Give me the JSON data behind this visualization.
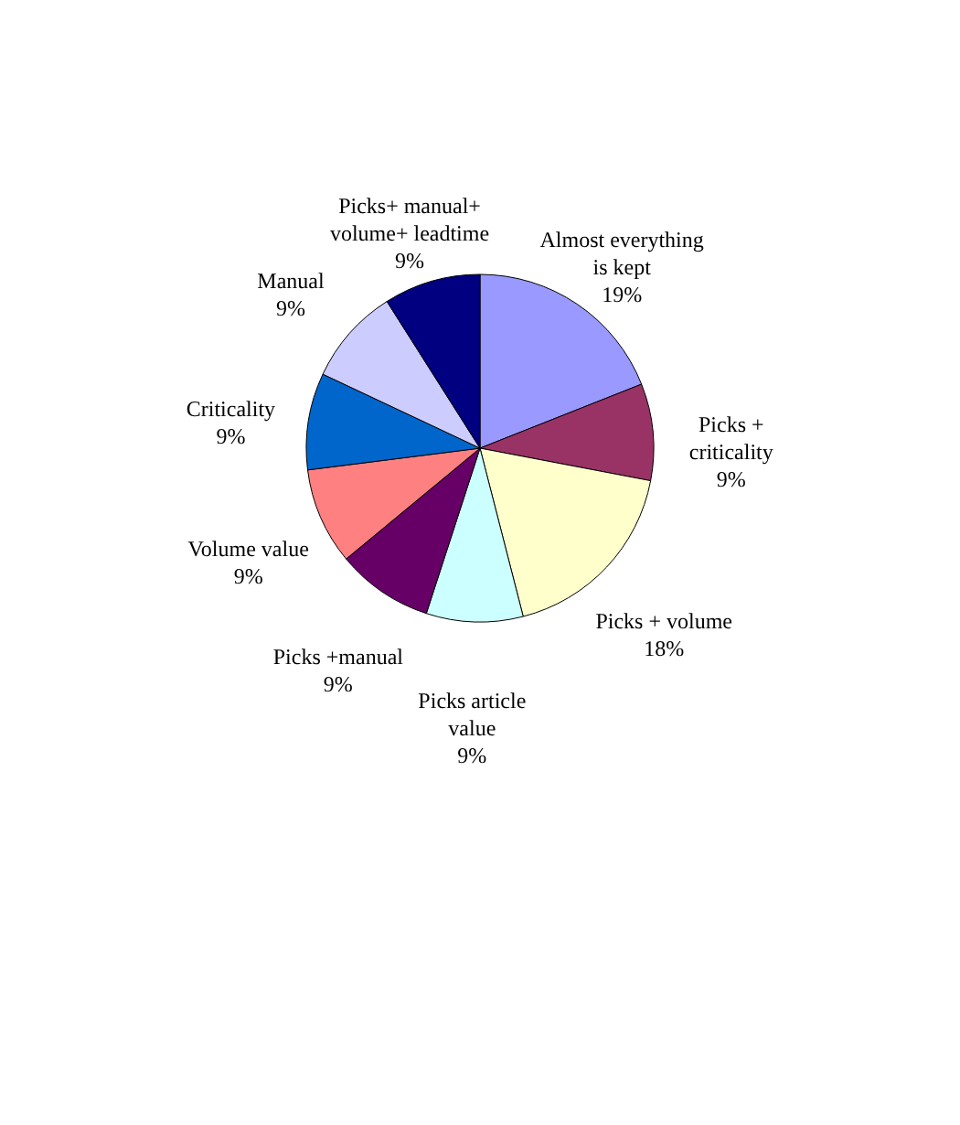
{
  "chart_data": {
    "type": "pie",
    "categories": [
      "Almost everything is kept",
      "Picks + criticality",
      "Picks + volume",
      "Picks article value",
      "Picks +manual",
      "Volume value",
      "Criticality",
      "Manual",
      "Picks+ manual+ volume+ leadtime"
    ],
    "values": [
      19,
      9,
      18,
      9,
      9,
      9,
      9,
      9,
      9
    ],
    "value_labels": [
      "19%",
      "9%",
      "18%",
      "9%",
      "9%",
      "9%",
      "9%",
      "9%",
      "9%"
    ],
    "colors": [
      "#9999ff",
      "#993366",
      "#ffffcc",
      "#ccffff",
      "#660066",
      "#ff8080",
      "#0066cc",
      "#ccccff",
      "#000080"
    ]
  }
}
